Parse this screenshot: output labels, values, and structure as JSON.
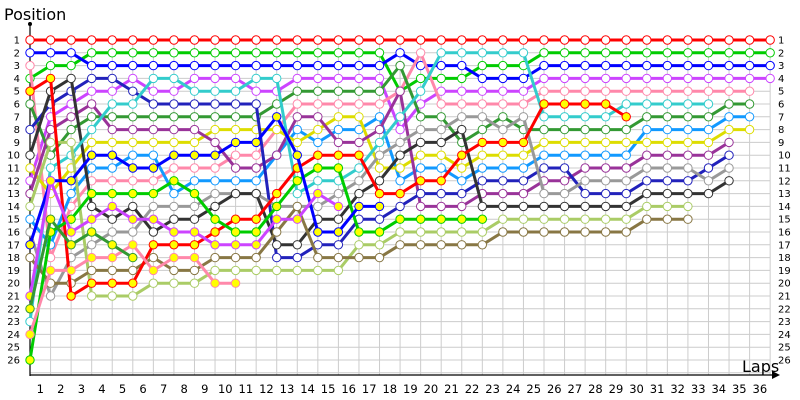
{
  "chart_data": {
    "type": "line",
    "ylabel": "Position",
    "xlabel": "Laps",
    "x_tick_labels": [
      "1",
      "2",
      "3",
      "4",
      "5",
      "6",
      "7",
      "8",
      "9",
      "10",
      "11",
      "12",
      "13",
      "14",
      "15",
      "16",
      "17",
      "18",
      "19",
      "20",
      "21",
      "22",
      "23",
      "24",
      "25",
      "26",
      "27",
      "28",
      "29",
      "30",
      "31",
      "32",
      "33",
      "34",
      "35",
      "36"
    ],
    "y_tick_labels": [
      "1",
      "2",
      "3",
      "4",
      "5",
      "6",
      "7",
      "8",
      "9",
      "10",
      "11",
      "12",
      "13",
      "14",
      "15",
      "16",
      "17",
      "18",
      "19",
      "20",
      "21",
      "22",
      "23",
      "24",
      "25",
      "26"
    ],
    "xlim": [
      0,
      36
    ],
    "ylim": [
      1,
      26
    ],
    "y_inverted": true,
    "grid": true,
    "x": [
      0,
      1,
      2,
      3,
      4,
      5,
      6,
      7,
      8,
      9,
      10,
      11,
      12,
      13,
      14,
      15,
      16,
      17,
      18,
      19,
      20,
      21,
      22,
      23,
      24,
      25,
      26,
      27,
      28,
      29,
      30,
      31,
      32,
      33,
      34,
      35,
      36
    ],
    "series": [
      {
        "color": "#ff0000",
        "marker_fill": "#ffffff",
        "values": [
          1,
          1,
          1,
          1,
          1,
          1,
          1,
          1,
          1,
          1,
          1,
          1,
          1,
          1,
          1,
          1,
          1,
          1,
          1,
          1,
          1,
          1,
          1,
          1,
          1,
          1,
          1,
          1,
          1,
          1,
          1,
          1,
          1,
          1,
          1,
          1,
          1
        ]
      },
      {
        "color": "#00cc00",
        "marker_fill": "#ffffff",
        "values": [
          4,
          3,
          3,
          2,
          2,
          2,
          2,
          2,
          2,
          2,
          2,
          2,
          2,
          2,
          2,
          2,
          2,
          2,
          5,
          4,
          4,
          4,
          3,
          3,
          3,
          2,
          2,
          2,
          2,
          2,
          2,
          2,
          2,
          2,
          2,
          2,
          2
        ]
      },
      {
        "color": "#0000ff",
        "marker_fill": "#ffffff",
        "values": [
          2,
          2,
          2,
          3,
          3,
          3,
          3,
          3,
          3,
          3,
          3,
          3,
          3,
          3,
          3,
          3,
          3,
          3,
          2,
          3,
          3,
          3,
          4,
          4,
          4,
          3,
          3,
          3,
          3,
          3,
          3,
          3,
          3,
          3,
          3,
          3,
          3
        ]
      },
      {
        "color": "#cc44ff",
        "marker_fill": "#ffffff",
        "values": [
          12,
          7,
          6,
          5,
          5,
          4,
          5,
          5,
          4,
          4,
          4,
          5,
          5,
          4,
          4,
          4,
          4,
          4,
          8,
          6,
          5,
          5,
          5,
          5,
          5,
          4,
          4,
          4,
          4,
          4,
          4,
          4,
          4,
          4,
          4,
          4,
          4
        ]
      },
      {
        "color": "#ff88aa",
        "marker_fill": "#ffffff",
        "values": [
          3,
          18,
          14,
          12,
          12,
          12,
          12,
          11,
          11,
          11,
          10,
          10,
          8,
          6,
          6,
          6,
          6,
          6,
          5,
          2,
          6,
          6,
          6,
          6,
          6,
          5,
          5,
          5,
          5,
          5,
          5,
          5,
          5,
          5,
          5,
          5,
          null
        ]
      },
      {
        "color": "#339933",
        "marker_fill": "#ffffff",
        "values": [
          6,
          10,
          8,
          7,
          7,
          7,
          7,
          7,
          7,
          7,
          7,
          7,
          6,
          5,
          5,
          5,
          5,
          5,
          3,
          7,
          7,
          9,
          8,
          7,
          8,
          8,
          8,
          8,
          8,
          8,
          7,
          7,
          7,
          7,
          6,
          6,
          null
        ]
      },
      {
        "color": "#1199ff",
        "marker_fill": "#ffffff",
        "values": [
          15,
          17,
          13,
          11,
          11,
          10,
          10,
          13,
          12,
          12,
          12,
          12,
          10,
          8,
          9,
          8,
          8,
          7,
          12,
          11,
          11,
          12,
          11,
          11,
          11,
          10,
          10,
          10,
          10,
          10,
          8,
          8,
          8,
          8,
          7,
          7,
          null
        ]
      },
      {
        "color": "#dddd00",
        "marker_fill": "#ffffff",
        "values": [
          11,
          13,
          11,
          9,
          9,
          9,
          9,
          9,
          9,
          8,
          8,
          8,
          8,
          9,
          8,
          7,
          7,
          11,
          11,
          10,
          10,
          11,
          10,
          10,
          10,
          9,
          9,
          9,
          9,
          9,
          9,
          9,
          9,
          9,
          8,
          8,
          null
        ]
      },
      {
        "color": "#993399",
        "marker_fill": "#ffffff",
        "values": [
          13,
          8,
          7,
          6,
          8,
          8,
          8,
          8,
          8,
          9,
          11,
          11,
          10,
          7,
          7,
          9,
          9,
          8,
          5,
          14,
          14,
          14,
          13,
          13,
          13,
          12,
          12,
          11,
          11,
          11,
          10,
          10,
          10,
          10,
          9,
          null,
          null
        ]
      },
      {
        "color": "#2222bb",
        "marker_fill": "#ffffff",
        "values": [
          8,
          6,
          5,
          4,
          4,
          5,
          6,
          6,
          6,
          6,
          6,
          6,
          18,
          18,
          17,
          17,
          15,
          15,
          14,
          13,
          13,
          13,
          12,
          12,
          12,
          11,
          11,
          13,
          13,
          13,
          12,
          12,
          12,
          11,
          10,
          null,
          null
        ]
      },
      {
        "color": "#999999",
        "marker_fill": "#ffffff",
        "values": [
          16,
          21,
          18,
          17,
          16,
          16,
          14,
          14,
          14,
          13,
          13,
          13,
          14,
          14,
          14,
          13,
          12,
          10,
          9,
          8,
          8,
          7,
          7,
          8,
          7,
          13,
          13,
          12,
          12,
          12,
          11,
          11,
          11,
          12,
          11,
          null,
          null
        ]
      },
      {
        "color": "#333333",
        "marker_fill": "#ffffff",
        "values": [
          10,
          5,
          4,
          14,
          15,
          14,
          16,
          15,
          15,
          14,
          13,
          13,
          17,
          17,
          15,
          15,
          13,
          12,
          10,
          9,
          9,
          8,
          14,
          14,
          14,
          14,
          14,
          14,
          14,
          14,
          13,
          13,
          13,
          13,
          12,
          null,
          null
        ]
      },
      {
        "color": "#33cccc",
        "marker_fill": "#ffffff",
        "values": [
          23,
          11,
          10,
          8,
          6,
          6,
          4,
          4,
          5,
          5,
          5,
          4,
          4,
          13,
          12,
          12,
          11,
          9,
          7,
          5,
          2,
          2,
          2,
          2,
          2,
          7,
          7,
          7,
          7,
          6,
          6,
          6,
          6,
          6,
          null,
          null,
          null
        ]
      },
      {
        "color": "#aacc66",
        "marker_fill": "#ffffff",
        "values": [
          14,
          9,
          9,
          21,
          21,
          21,
          20,
          20,
          20,
          19,
          19,
          19,
          19,
          19,
          19,
          19,
          17,
          17,
          16,
          16,
          16,
          16,
          16,
          15,
          15,
          15,
          15,
          15,
          15,
          15,
          14,
          14,
          14,
          null,
          null,
          null,
          null
        ]
      },
      {
        "color": "#887744",
        "marker_fill": "#ffffff",
        "values": [
          18,
          20,
          20,
          19,
          19,
          19,
          18,
          19,
          19,
          18,
          18,
          18,
          16,
          14,
          18,
          18,
          18,
          18,
          17,
          17,
          17,
          17,
          17,
          16,
          16,
          16,
          16,
          16,
          16,
          16,
          15,
          15,
          15,
          null,
          null,
          null,
          null
        ]
      },
      {
        "color": "#ff0000",
        "marker_fill": "#ffff00",
        "values": [
          5,
          4,
          21,
          20,
          20,
          20,
          17,
          17,
          17,
          16,
          15,
          15,
          13,
          11,
          10,
          10,
          10,
          13,
          13,
          12,
          12,
          10,
          9,
          9,
          9,
          6,
          6,
          6,
          6,
          7,
          null,
          null,
          null,
          null,
          null,
          null,
          null
        ]
      },
      {
        "color": "#00cc00",
        "marker_fill": "#ffff00",
        "values": [
          26,
          16,
          15,
          13,
          13,
          13,
          13,
          12,
          13,
          15,
          16,
          16,
          14,
          12,
          11,
          11,
          16,
          16,
          15,
          15,
          15,
          15,
          15,
          null,
          null,
          null,
          null,
          null,
          null,
          null,
          null,
          null,
          null,
          null,
          null,
          null,
          null
        ]
      },
      {
        "color": "#0000ff",
        "marker_fill": "#ffff00",
        "values": [
          17,
          12,
          12,
          10,
          10,
          11,
          11,
          10,
          10,
          10,
          9,
          9,
          7,
          10,
          16,
          16,
          14,
          14,
          null,
          null,
          null,
          null,
          null,
          null,
          null,
          null,
          null,
          null,
          null,
          null,
          null,
          null,
          null,
          null,
          null,
          null,
          null
        ]
      },
      {
        "color": "#cc44ff",
        "marker_fill": "#ffff00",
        "values": [
          21,
          12,
          16,
          15,
          14,
          15,
          15,
          16,
          16,
          17,
          17,
          17,
          15,
          15,
          13,
          14,
          null,
          null,
          null,
          null,
          null,
          null,
          null,
          null,
          null,
          null,
          null,
          null,
          null,
          null,
          null,
          null,
          null,
          null,
          null,
          null,
          null
        ]
      },
      {
        "color": "#ff88aa",
        "marker_fill": "#ffff00",
        "values": [
          24,
          19,
          19,
          18,
          18,
          17,
          19,
          18,
          18,
          20,
          20,
          null,
          null,
          null,
          null,
          null,
          null,
          null,
          null,
          null,
          null,
          null,
          null,
          null,
          null,
          null,
          null,
          null,
          null,
          null,
          null,
          null,
          null,
          null,
          null,
          null,
          null
        ]
      },
      {
        "color": "#339933",
        "marker_fill": "#ffff00",
        "values": [
          22,
          15,
          17,
          16,
          17,
          18,
          null,
          null,
          null,
          null,
          null,
          null,
          null,
          null,
          null,
          null,
          null,
          null,
          null,
          null,
          null,
          null,
          null,
          null,
          null,
          null,
          null,
          null,
          null,
          null,
          null,
          null,
          null,
          null,
          null,
          null,
          null
        ]
      }
    ]
  }
}
